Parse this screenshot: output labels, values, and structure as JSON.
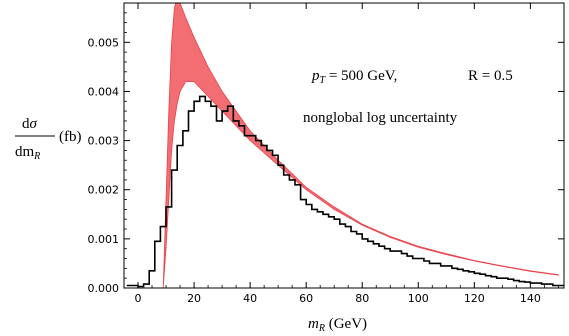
{
  "chart_data": {
    "type": "area",
    "xlabel": "m_R (GeV)",
    "ylabel_numerator": "dσ",
    "ylabel_denominator": "dm_R",
    "ylabel_unit": "(fb)",
    "xlim": [
      -5,
      152
    ],
    "ylim": [
      0,
      0.0058
    ],
    "x_ticks": [
      0,
      20,
      40,
      60,
      80,
      100,
      120,
      140
    ],
    "y_ticks": [
      0.0,
      0.001,
      0.002,
      0.003,
      0.004,
      0.005
    ],
    "y_tick_labels": [
      "0.000",
      "0.001",
      "0.002",
      "0.003",
      "0.004",
      "0.005"
    ],
    "annotations": {
      "line1_pt": "p_T = 500 GeV,",
      "line1_r": "R = 0.5",
      "line2": "nonglobal log uncertainty"
    },
    "series": [
      {
        "kind": "band",
        "color": "#f0555a",
        "x": [
          9.0,
          10.0,
          11.0,
          12.0,
          13.0,
          14.0,
          15.0,
          17.0,
          20.0,
          25.0,
          30.0,
          35.0,
          40.0,
          50.0,
          60.0,
          70.0,
          80.0,
          90.0,
          100.0,
          110.0,
          120.0,
          130.0,
          140.0,
          150.0
        ],
        "upper": [
          0.0,
          0.0018,
          0.0036,
          0.005,
          0.0057,
          0.0059,
          0.0058,
          0.0055,
          0.0051,
          0.0045,
          0.004,
          0.0036,
          0.0032,
          0.0026,
          0.00205,
          0.00165,
          0.0013,
          0.00105,
          0.00085,
          0.0007,
          0.00056,
          0.00045,
          0.00035,
          0.00027
        ],
        "lower": [
          0.0,
          0.0008,
          0.0018,
          0.0028,
          0.0034,
          0.00375,
          0.004,
          0.0042,
          0.0042,
          0.0039,
          0.0036,
          0.0033,
          0.003,
          0.0025,
          0.002,
          0.0016,
          0.00128,
          0.00103,
          0.00083,
          0.00068,
          0.00055,
          0.00044,
          0.00034,
          0.00026
        ]
      },
      {
        "kind": "histogram",
        "color": "#000000",
        "bin_width": 2,
        "bin_start": -4,
        "values": [
          5e-05,
          5e-05,
          3e-05,
          8e-05,
          0.00035,
          0.00095,
          0.00125,
          0.00165,
          0.0024,
          0.0029,
          0.0032,
          0.0036,
          0.0038,
          0.0039,
          0.0038,
          0.0037,
          0.0034,
          0.0036,
          0.0037,
          0.0034,
          0.0033,
          0.0031,
          0.0031,
          0.003,
          0.0029,
          0.0028,
          0.0027,
          0.0025,
          0.0023,
          0.0022,
          0.0021,
          0.0018,
          0.0017,
          0.0016,
          0.00155,
          0.0015,
          0.00145,
          0.0014,
          0.0013,
          0.00125,
          0.00115,
          0.0011,
          0.001,
          0.00095,
          0.0009,
          0.00085,
          0.0008,
          0.00075,
          0.00075,
          0.0007,
          0.00065,
          0.0006,
          0.0006,
          0.00055,
          0.0005,
          0.0005,
          0.00045,
          0.00045,
          0.0004,
          0.00038,
          0.00035,
          0.00033,
          0.0003,
          0.00028,
          0.00025,
          0.00023,
          0.0002,
          0.0002,
          0.00018,
          0.00015,
          0.00013,
          0.00012,
          0.0001,
          0.0001,
          8e-05,
          8e-05,
          5e-05,
          5e-05
        ]
      }
    ]
  }
}
